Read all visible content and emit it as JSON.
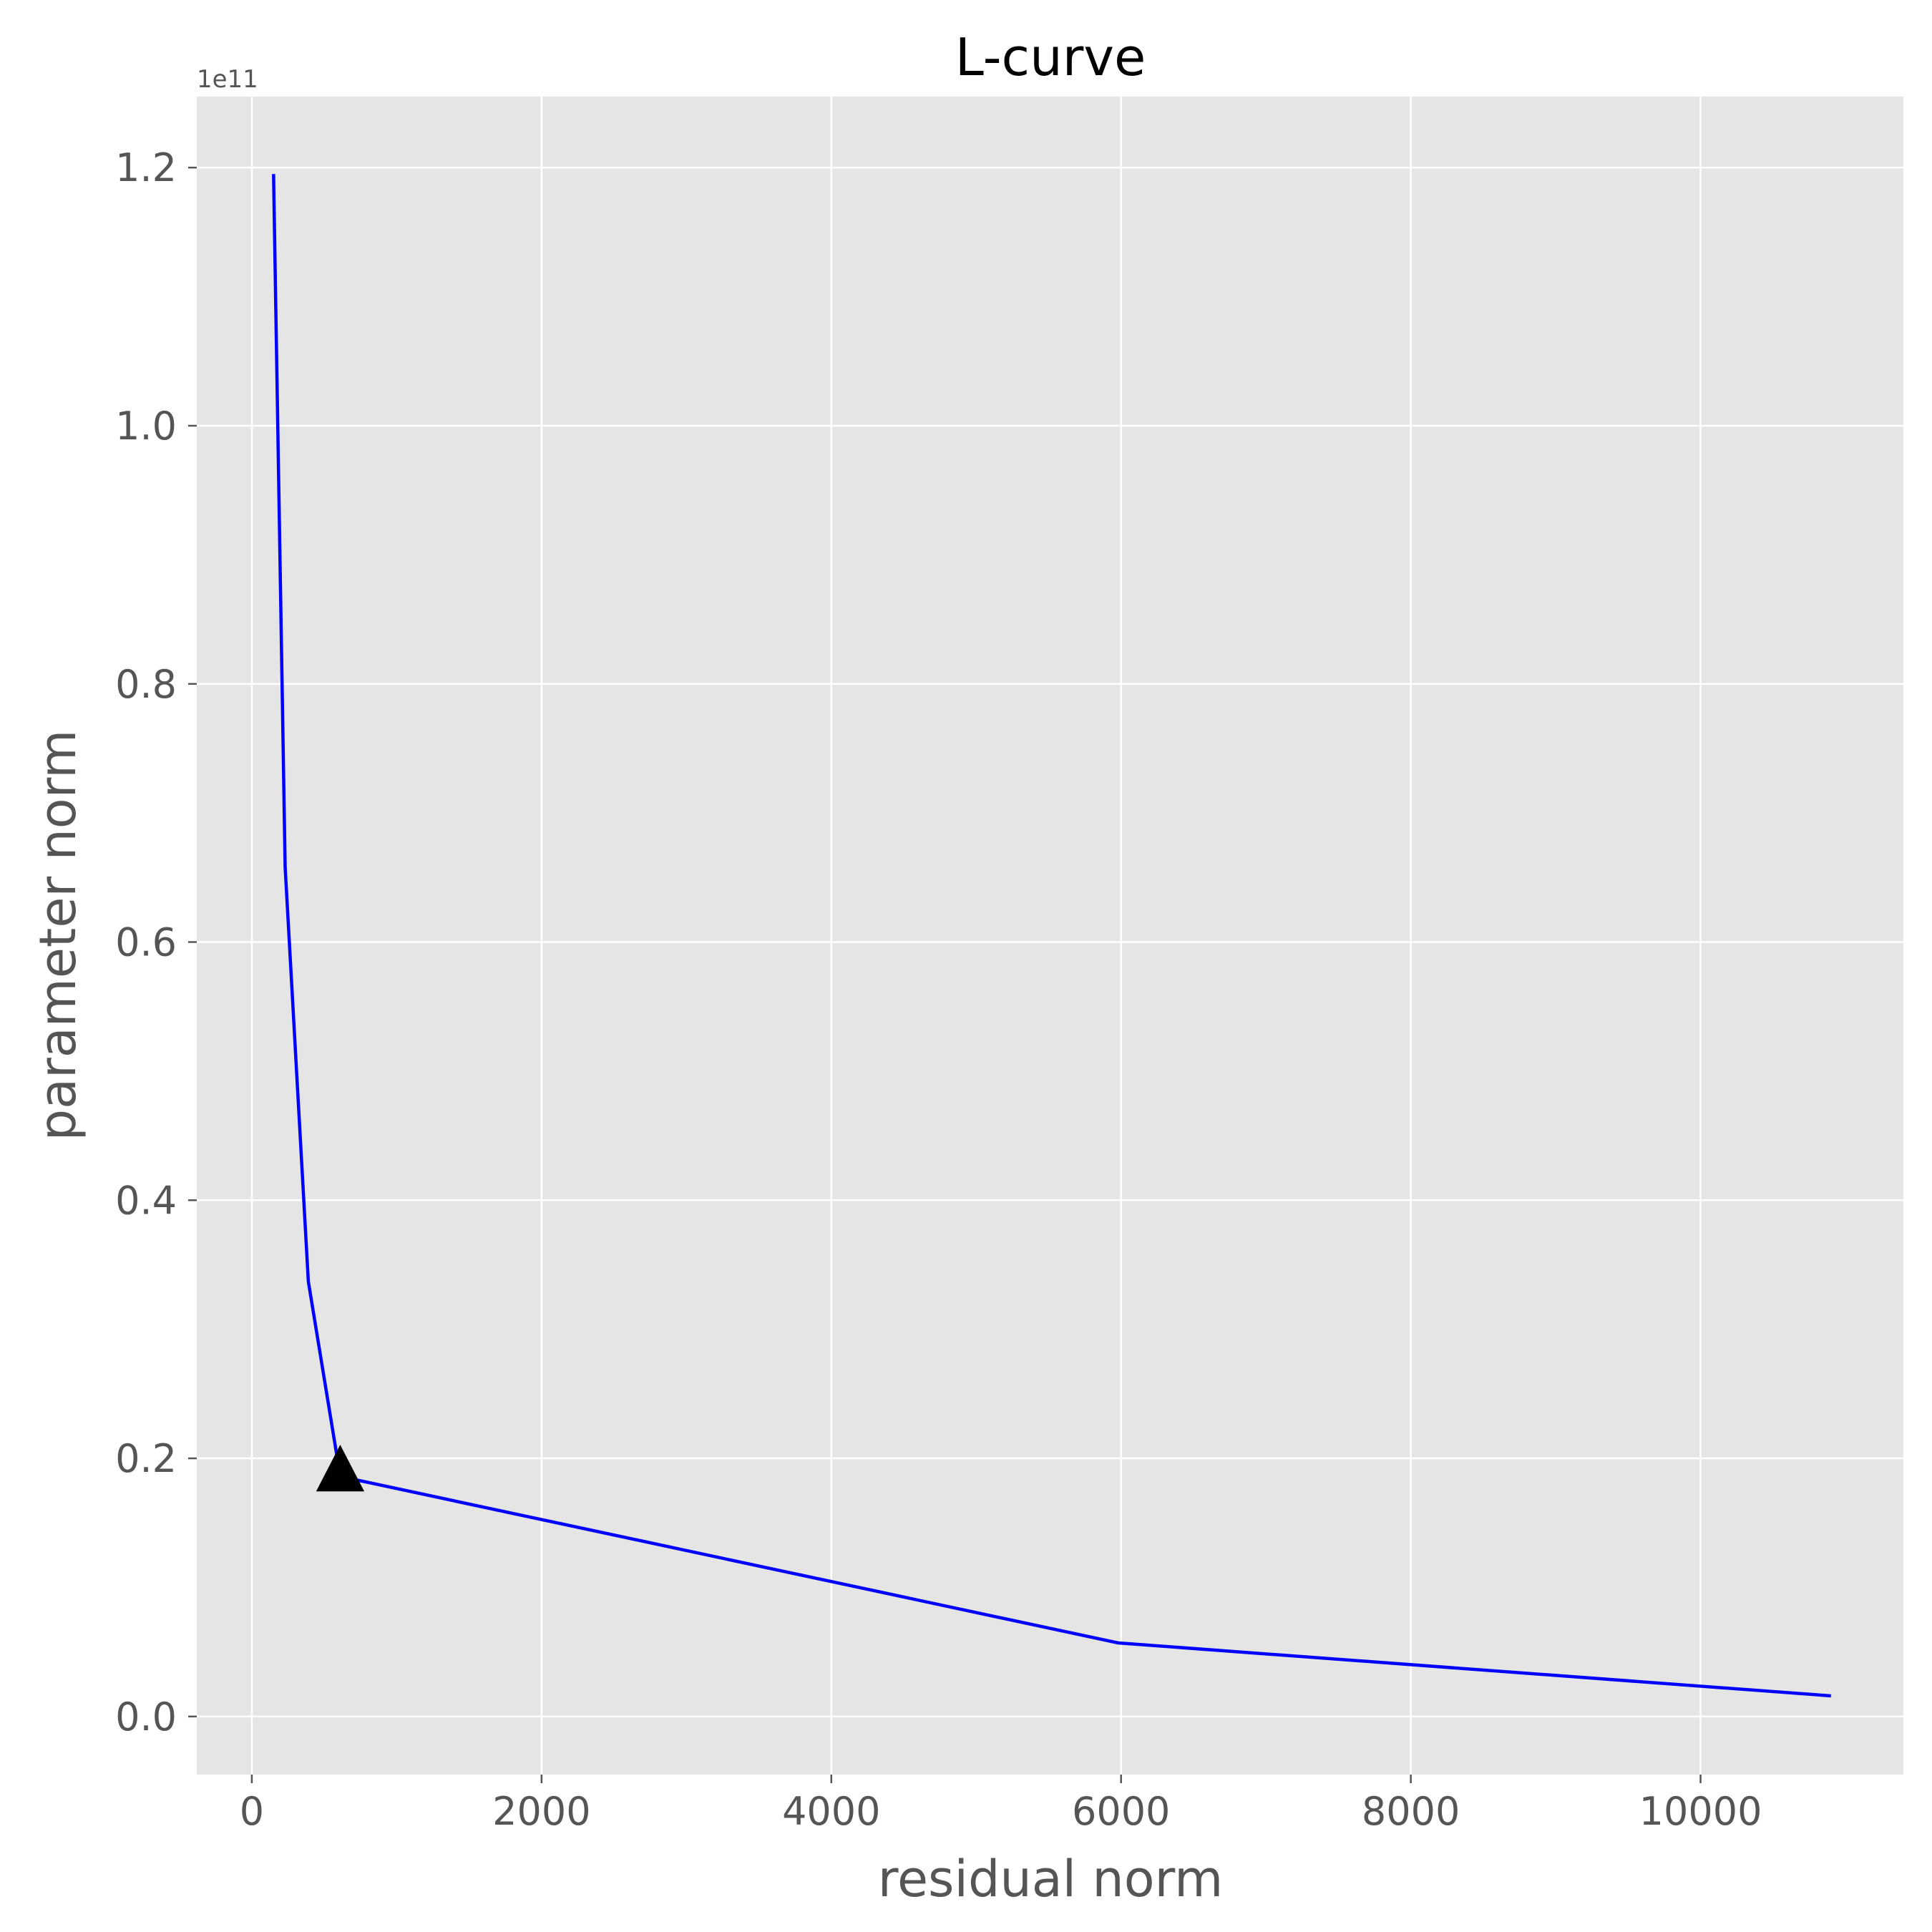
{
  "chart_data": {
    "type": "line",
    "title": "L-curve",
    "xlabel": "residual norm",
    "ylabel": "parameter norm",
    "y_offset_label": "1e11",
    "xlim": [
      -380,
      11400
    ],
    "ylim": [
      -0.045,
      1.255
    ],
    "x_ticks": [
      0,
      2000,
      4000,
      6000,
      8000,
      10000
    ],
    "x_tick_labels": [
      "0",
      "2000",
      "4000",
      "6000",
      "8000",
      "10000"
    ],
    "y_ticks": [
      0.0,
      0.2,
      0.4,
      0.6,
      0.8,
      1.0,
      1.2
    ],
    "y_tick_labels": [
      "0.0",
      "0.2",
      "0.4",
      "0.6",
      "0.8",
      "1.0",
      "1.2"
    ],
    "grid": true,
    "series": [
      {
        "color": "#0000ff",
        "x": [
          150,
          230,
          390,
          590,
          650,
          5980,
          10900
        ],
        "y": [
          1.195,
          0.658,
          0.337,
          0.2,
          0.185,
          0.057,
          0.016
        ]
      }
    ],
    "marker": {
      "shape": "triangle",
      "color": "#000000",
      "x": 610,
      "y": 0.188
    },
    "colors": {
      "plot_background": "#e5e5e5",
      "grid": "#ffffff",
      "line": "#0000ff"
    }
  }
}
